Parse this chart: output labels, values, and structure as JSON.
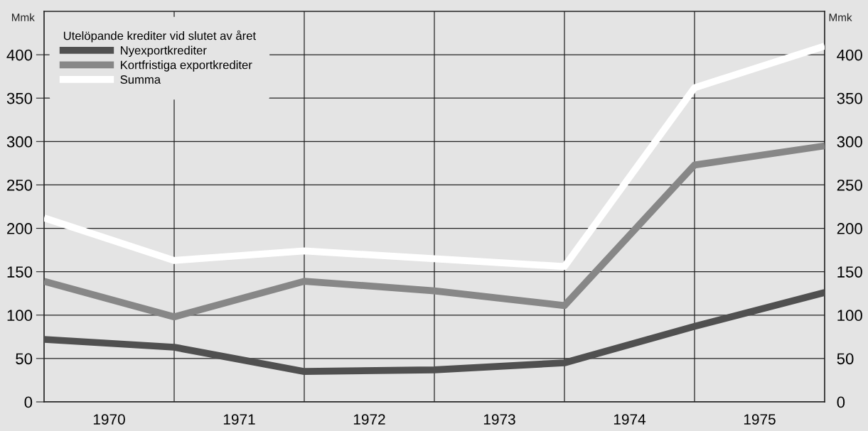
{
  "chart_data": {
    "type": "line",
    "x": [
      1970,
      1971,
      1972,
      1973,
      1974,
      1975,
      1976
    ],
    "series": [
      {
        "name": "Nyexportkrediter",
        "color": "#505050",
        "values": [
          72,
          63,
          35,
          37,
          45,
          87,
          126
        ]
      },
      {
        "name": "Kortfristiga exportkrediter",
        "color": "#878787",
        "values": [
          139,
          98,
          139,
          128,
          111,
          273,
          295
        ]
      },
      {
        "name": "Summa",
        "color": "#ffffff",
        "values": [
          212,
          163,
          174,
          165,
          156,
          362,
          410
        ]
      }
    ],
    "legend_title": "Utelöpande krediter vid slutet av året",
    "legend": "top left",
    "ylabel": "Mmk",
    "y2label": "Mmk",
    "xlim": [
      1970,
      1976
    ],
    "xticks": [
      {
        "value": 1970.5,
        "label": "1970"
      },
      {
        "value": 1971,
        "label": null
      },
      {
        "value": 1971.5,
        "label": "1971"
      },
      {
        "value": 1972,
        "label": null
      },
      {
        "value": 1972.5,
        "label": "1972"
      },
      {
        "value": 1973,
        "label": null
      },
      {
        "value": 1973.5,
        "label": "1973"
      },
      {
        "value": 1974,
        "label": null
      },
      {
        "value": 1974.5,
        "label": "1974"
      },
      {
        "value": 1975,
        "label": null
      },
      {
        "value": 1975.5,
        "label": "1975"
      }
    ],
    "ylim": [
      0,
      450
    ],
    "yticks": [
      0,
      50,
      100,
      150,
      200,
      250,
      300,
      350,
      400
    ],
    "y2lim": [
      0,
      450
    ],
    "y2ticks": [
      0,
      50,
      100,
      150,
      200,
      250,
      300,
      350,
      400
    ],
    "grid": true,
    "marker": "none",
    "line_style": "solid"
  }
}
